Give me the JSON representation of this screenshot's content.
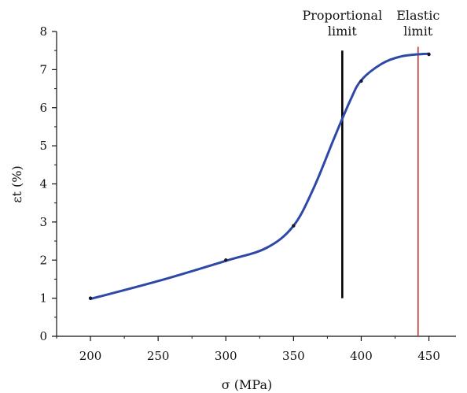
{
  "chart_data": {
    "type": "line",
    "title": "",
    "xlabel": "σ (MPa)",
    "ylabel": "εt (%)",
    "xlim": [
      175,
      470
    ],
    "ylim": [
      0,
      8
    ],
    "x_ticks": [
      200,
      250,
      300,
      350,
      400,
      450
    ],
    "y_ticks": [
      0,
      1,
      2,
      3,
      4,
      5,
      6,
      7,
      8
    ],
    "grid": false,
    "series": [
      {
        "color": "#2e48a8",
        "points": [
          {
            "x": 200,
            "y": 0.98
          },
          {
            "x": 250,
            "y": 1.45
          },
          {
            "x": 300,
            "y": 1.98
          },
          {
            "x": 330,
            "y": 2.32
          },
          {
            "x": 350,
            "y": 2.9
          },
          {
            "x": 365,
            "y": 3.9
          },
          {
            "x": 380,
            "y": 5.2
          },
          {
            "x": 392,
            "y": 6.2
          },
          {
            "x": 400,
            "y": 6.72
          },
          {
            "x": 415,
            "y": 7.15
          },
          {
            "x": 430,
            "y": 7.35
          },
          {
            "x": 450,
            "y": 7.42
          }
        ]
      }
    ],
    "markers": [
      {
        "x": 200,
        "y": 1.0
      },
      {
        "x": 300,
        "y": 2.0
      },
      {
        "x": 350,
        "y": 2.9
      },
      {
        "x": 400,
        "y": 6.7
      },
      {
        "x": 450,
        "y": 7.4
      }
    ],
    "reference_lines": [
      {
        "label_lines": [
          "Proportional",
          "limit"
        ],
        "x": 386,
        "y_from": 1.0,
        "y_to": 7.5,
        "color": "#000000"
      },
      {
        "label_lines": [
          "Elastic",
          "limit"
        ],
        "x": 442,
        "y_from": 0.0,
        "y_to": 7.6,
        "color": "#d03030"
      }
    ]
  }
}
